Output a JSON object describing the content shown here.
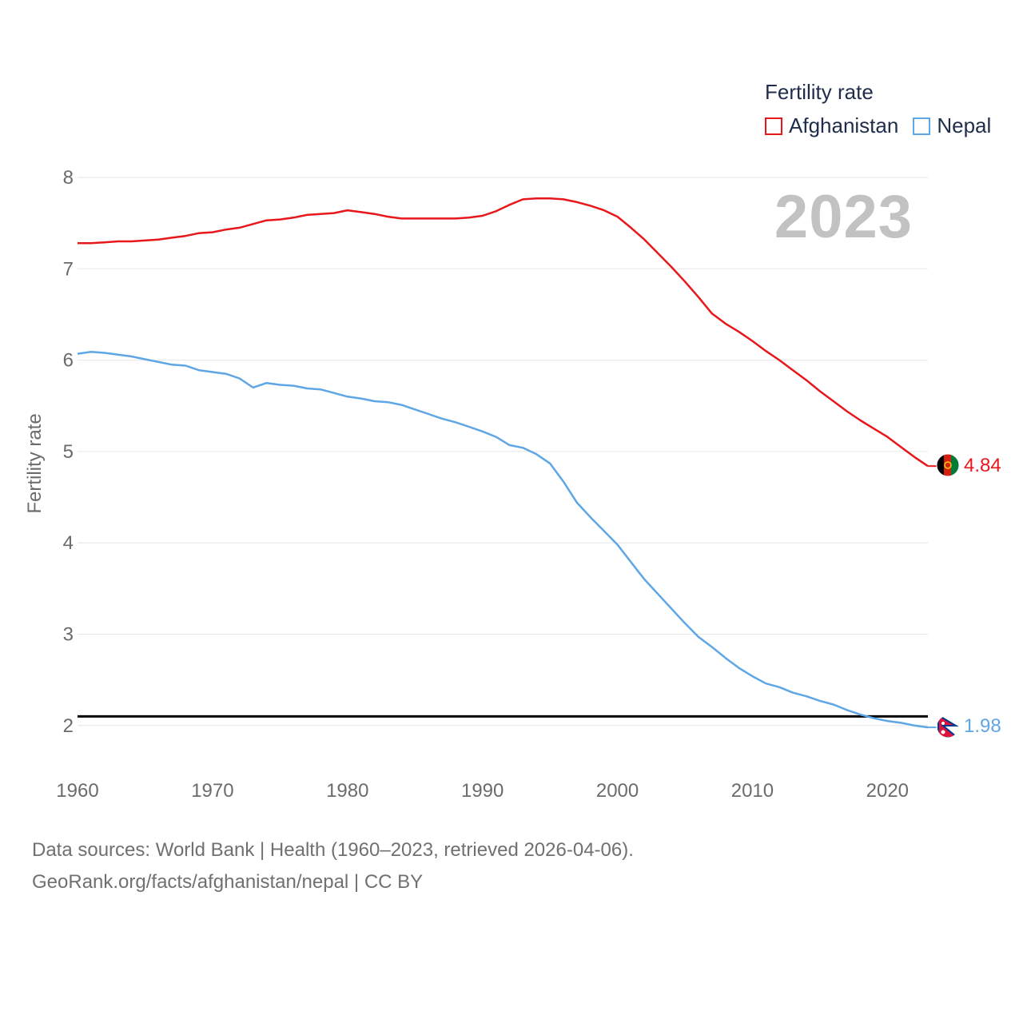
{
  "colors": {
    "afghanistan": "#e8171b",
    "nepal": "#5ea6e6",
    "grid": "#e6e6e6",
    "axis_text": "#6b6b6b",
    "threshold": "#000000"
  },
  "legend": {
    "title": "Fertility rate",
    "items": [
      {
        "name": "Afghanistan",
        "color": "#e8171b"
      },
      {
        "name": "Nepal",
        "color": "#5ea6e6"
      }
    ]
  },
  "year_label": "2023",
  "source": {
    "line1": "Data sources: World Bank | Health (1960–2023, retrieved 2026-04-06).",
    "line2": "GeoRank.org/facts/afghanistan/nepal | CC BY"
  },
  "chart_data": {
    "type": "line",
    "title": "",
    "xlabel": "",
    "ylabel": "Fertility rate",
    "xlim": [
      1960,
      2023
    ],
    "ylim": [
      1.5,
      8.4
    ],
    "yticks": [
      2,
      3,
      4,
      5,
      6,
      7,
      8
    ],
    "xticks": [
      1960,
      1970,
      1980,
      1990,
      2000,
      2010,
      2020
    ],
    "threshold": 2.1,
    "end_labels": {
      "Afghanistan": "4.84",
      "Nepal": "1.98"
    },
    "x": [
      1960,
      1961,
      1962,
      1963,
      1964,
      1965,
      1966,
      1967,
      1968,
      1969,
      1970,
      1971,
      1972,
      1973,
      1974,
      1975,
      1976,
      1977,
      1978,
      1979,
      1980,
      1981,
      1982,
      1983,
      1984,
      1985,
      1986,
      1987,
      1988,
      1989,
      1990,
      1991,
      1992,
      1993,
      1994,
      1995,
      1996,
      1997,
      1998,
      1999,
      2000,
      2001,
      2002,
      2003,
      2004,
      2005,
      2006,
      2007,
      2008,
      2009,
      2010,
      2011,
      2012,
      2013,
      2014,
      2015,
      2016,
      2017,
      2018,
      2019,
      2020,
      2021,
      2022,
      2023
    ],
    "series": [
      {
        "name": "Afghanistan",
        "color": "#e8171b",
        "values": [
          7.28,
          7.28,
          7.29,
          7.3,
          7.3,
          7.31,
          7.32,
          7.34,
          7.36,
          7.39,
          7.4,
          7.43,
          7.45,
          7.49,
          7.53,
          7.54,
          7.56,
          7.59,
          7.6,
          7.61,
          7.64,
          7.62,
          7.6,
          7.57,
          7.55,
          7.55,
          7.55,
          7.55,
          7.55,
          7.56,
          7.58,
          7.63,
          7.7,
          7.76,
          7.77,
          7.77,
          7.76,
          7.73,
          7.69,
          7.64,
          7.57,
          7.45,
          7.32,
          7.17,
          7.02,
          6.86,
          6.69,
          6.51,
          6.4,
          6.31,
          6.21,
          6.1,
          6.0,
          5.89,
          5.78,
          5.66,
          5.55,
          5.44,
          5.34,
          5.25,
          5.16,
          5.05,
          4.94,
          4.84
        ]
      },
      {
        "name": "Nepal",
        "color": "#5ea6e6",
        "values": [
          6.07,
          6.09,
          6.08,
          6.06,
          6.04,
          6.01,
          5.98,
          5.95,
          5.94,
          5.89,
          5.87,
          5.85,
          5.8,
          5.7,
          5.75,
          5.73,
          5.72,
          5.69,
          5.68,
          5.64,
          5.6,
          5.58,
          5.55,
          5.54,
          5.51,
          5.46,
          5.41,
          5.36,
          5.32,
          5.27,
          5.22,
          5.16,
          5.07,
          5.04,
          4.97,
          4.87,
          4.67,
          4.44,
          4.28,
          4.13,
          3.98,
          3.79,
          3.6,
          3.44,
          3.28,
          3.12,
          2.97,
          2.86,
          2.74,
          2.63,
          2.54,
          2.46,
          2.42,
          2.36,
          2.32,
          2.27,
          2.23,
          2.17,
          2.12,
          2.08,
          2.05,
          2.03,
          2.0,
          1.98
        ]
      }
    ]
  }
}
